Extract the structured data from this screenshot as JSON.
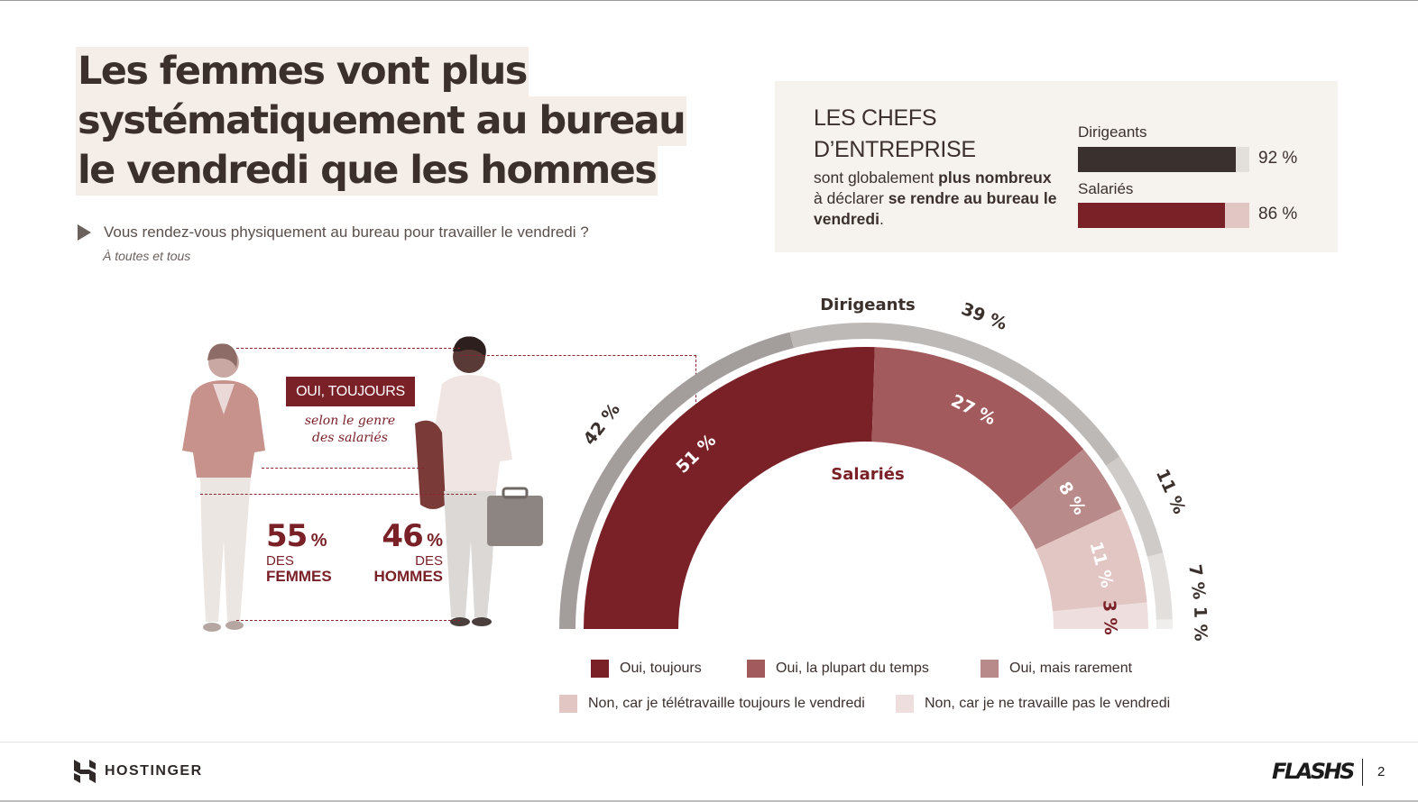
{
  "title": {
    "lines": [
      "Les femmes vont plus",
      "systématiquement au bureau",
      "le vendredi que les hommes"
    ]
  },
  "question": {
    "text": "Vous rendez-vous physiquement au bureau pour travailler le vendredi ?",
    "sub": "À toutes et tous"
  },
  "info_box": {
    "title_line1": "LES CHEFS",
    "title_line2": "D’ENTREPRISE",
    "desc_1": "sont globalement ",
    "desc_2": "plus nombreux",
    "desc_3": " à déclarer ",
    "desc_4": "se rendre au bureau le vendredi",
    "desc_5": ".",
    "bars": [
      {
        "label": "Dirigeants",
        "value": 92,
        "value_label": "92 %",
        "color": "#3a302d",
        "track": "#e3dfdb"
      },
      {
        "label": "Salariés",
        "value": 86,
        "value_label": "86 %",
        "color": "#7a2128",
        "track": "#e2c6c4"
      }
    ]
  },
  "gender": {
    "badge": "OUI, TOUJOURS",
    "subtitle_1": "selon le genre",
    "subtitle_2": "des salariés",
    "women": {
      "value": "55",
      "pct": "%",
      "des": "DES",
      "group": "FEMMES"
    },
    "men": {
      "value": "46",
      "pct": "%",
      "des": "DES",
      "group": "HOMMES"
    }
  },
  "chart_data": {
    "type": "pie",
    "shape": "semicircle-donut",
    "categories": [
      "Oui, toujours",
      "Oui, la plupart du temps",
      "Oui, mais rarement",
      "Non, car je télétravaille toujours le vendredi",
      "Non, car je ne travaille pas le vendredi"
    ],
    "series": [
      {
        "name": "Dirigeants",
        "ring": "outer",
        "values": [
          42,
          39,
          11,
          7,
          1
        ],
        "labels": [
          "42 %",
          "39 %",
          "11 %",
          "7 %",
          "1 %"
        ]
      },
      {
        "name": "Salariés",
        "ring": "inner",
        "values": [
          51,
          27,
          8,
          11,
          3
        ],
        "labels": [
          "51 %",
          "27 %",
          "8 %",
          "11 %",
          "3 %"
        ]
      }
    ],
    "colors": [
      "#7a2128",
      "#a35a5c",
      "#b98a8a",
      "#e2c6c4",
      "#eedfde"
    ],
    "outer_colors": [
      "#a39e9b",
      "#bdb9b6",
      "#cfcbc8",
      "#e2dfdc",
      "#f0eeec"
    ],
    "legend": "bottom"
  },
  "footer": {
    "brand": "HOSTINGER",
    "flash": "FLASHS",
    "page": "2"
  }
}
